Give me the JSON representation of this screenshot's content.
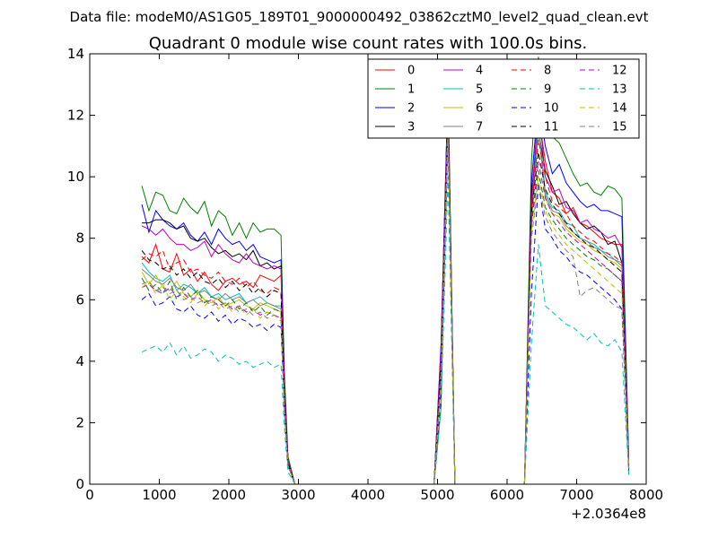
{
  "figure": {
    "suptitle": "Data file: modeM0/AS1G05_189T01_9000000492_03862cztM0_level2_quad_clean.evt"
  },
  "chart_data": {
    "type": "line",
    "title": "Quadrant 0 module wise count rates with 100.0s bins.",
    "xlabel": "",
    "ylabel": "",
    "x_offset_label": "+2.0364e8",
    "xlim": [
      0,
      8000
    ],
    "ylim": [
      0,
      14
    ],
    "xticks": [
      0,
      1000,
      2000,
      3000,
      4000,
      5000,
      6000,
      7000,
      8000
    ],
    "xtick_labels": [
      "0",
      "1000",
      "2000",
      "3000",
      "4000",
      "5000",
      "6000",
      "7000",
      "8000"
    ],
    "yticks": [
      0,
      2,
      4,
      6,
      8,
      10,
      12,
      14
    ],
    "ytick_labels": [
      "0",
      "2",
      "4",
      "6",
      "8",
      "10",
      "12",
      "14"
    ],
    "grid": false,
    "legend_position": "top-right",
    "legend_columns": 4,
    "x": [
      750,
      850,
      950,
      1050,
      1150,
      1250,
      1350,
      1450,
      1550,
      1650,
      1750,
      1850,
      1950,
      2050,
      2150,
      2250,
      2350,
      2450,
      2550,
      2650,
      2750,
      2800,
      2850,
      2950,
      3050,
      4950,
      5050,
      5150,
      5250,
      5350,
      6250,
      6350,
      6450,
      6550,
      6650,
      6750,
      6850,
      6950,
      7050,
      7150,
      7250,
      7350,
      7450,
      7550,
      7650,
      7750
    ],
    "series": [
      {
        "name": "0",
        "color": "#ff0000",
        "dash": "solid",
        "values": [
          7.4,
          7.2,
          7.8,
          7.0,
          6.9,
          7.5,
          6.8,
          7.0,
          6.6,
          6.9,
          6.5,
          6.3,
          6.6,
          6.7,
          6.5,
          6.6,
          6.4,
          6.8,
          6.7,
          6.6,
          6.8,
          3.0,
          0.7,
          0,
          0,
          0,
          4.5,
          12.7,
          0,
          0,
          0,
          9.0,
          12.0,
          10.5,
          9.5,
          9.3,
          8.8,
          9.0,
          8.5,
          8.4,
          8.2,
          8.0,
          7.9,
          7.8,
          7.8,
          0.6
        ]
      },
      {
        "name": "1",
        "color": "#008000",
        "dash": "solid",
        "values": [
          9.7,
          8.9,
          9.5,
          9.4,
          8.9,
          8.8,
          9.3,
          9.0,
          8.8,
          9.2,
          8.4,
          8.9,
          8.7,
          8.1,
          8.5,
          8.0,
          8.5,
          8.2,
          8.3,
          8.3,
          8.1,
          3.5,
          0.9,
          0,
          0,
          0,
          2.5,
          13.3,
          0,
          0,
          0,
          10.5,
          13.9,
          11.8,
          11.3,
          11.1,
          10.6,
          10.1,
          9.7,
          9.8,
          9.5,
          9.4,
          9.7,
          9.6,
          9.3,
          0.8
        ]
      },
      {
        "name": "2",
        "color": "#0000ff",
        "dash": "solid",
        "values": [
          9.1,
          8.2,
          8.9,
          8.6,
          8.4,
          8.3,
          8.5,
          8.1,
          7.9,
          8.2,
          7.8,
          8.3,
          8.0,
          7.8,
          7.9,
          7.6,
          7.8,
          7.4,
          7.3,
          7.2,
          7.3,
          3.3,
          0.8,
          0,
          0,
          0,
          4.5,
          12.8,
          0,
          0,
          0,
          9.8,
          12.5,
          11.0,
          10.1,
          10.4,
          9.8,
          9.5,
          9.2,
          9.0,
          9.1,
          8.9,
          8.9,
          8.8,
          8.7,
          0.7
        ]
      },
      {
        "name": "3",
        "color": "#000000",
        "dash": "solid",
        "values": [
          8.5,
          8.5,
          8.6,
          8.6,
          8.5,
          8.3,
          8.4,
          8.0,
          7.9,
          8.0,
          7.7,
          7.5,
          7.6,
          7.4,
          7.5,
          7.3,
          7.6,
          7.1,
          7.2,
          7.0,
          7.1,
          3.2,
          0.8,
          0,
          0,
          0,
          4.0,
          12.6,
          0,
          0,
          0,
          9.5,
          11.5,
          10.2,
          9.7,
          9.1,
          9.2,
          8.8,
          8.5,
          8.3,
          8.4,
          8.2,
          7.8,
          7.9,
          7.2,
          0.6
        ]
      },
      {
        "name": "4",
        "color": "#bf00bf",
        "dash": "solid",
        "values": [
          8.4,
          8.3,
          8.1,
          8.3,
          8.0,
          7.8,
          7.8,
          7.6,
          7.7,
          7.9,
          7.4,
          7.8,
          7.5,
          7.3,
          7.2,
          7.5,
          7.2,
          7.1,
          7.0,
          7.1,
          7.0,
          3.1,
          0.8,
          0,
          0,
          0,
          4.3,
          12.5,
          0,
          0,
          0,
          9.2,
          12.3,
          10.0,
          9.5,
          9.6,
          9.0,
          8.9,
          8.5,
          8.6,
          8.3,
          8.2,
          8.0,
          8.1,
          7.7,
          0.6
        ]
      },
      {
        "name": "5",
        "color": "#00bfbf",
        "dash": "solid",
        "values": [
          7.2,
          6.9,
          6.7,
          6.6,
          6.8,
          6.3,
          6.5,
          6.4,
          6.2,
          6.4,
          6.1,
          6.2,
          6.0,
          6.1,
          6.2,
          5.9,
          6.0,
          6.1,
          5.9,
          5.8,
          5.8,
          2.6,
          0.7,
          0,
          0,
          0,
          3.8,
          12.0,
          0,
          0,
          0,
          8.7,
          11.8,
          9.5,
          9.0,
          8.9,
          8.5,
          8.4,
          8.0,
          7.9,
          7.8,
          7.6,
          7.5,
          7.3,
          7.2,
          0.5
        ]
      },
      {
        "name": "6",
        "color": "#bfbf00",
        "dash": "solid",
        "values": [
          6.9,
          6.5,
          6.8,
          6.4,
          6.3,
          6.6,
          6.2,
          6.1,
          6.3,
          6.0,
          5.9,
          6.1,
          5.8,
          5.9,
          6.0,
          5.8,
          5.7,
          5.9,
          5.8,
          5.7,
          5.6,
          2.5,
          0.6,
          0,
          0,
          0,
          3.5,
          11.8,
          0,
          0,
          0,
          8.5,
          11.5,
          9.3,
          8.8,
          8.7,
          8.3,
          8.1,
          7.9,
          7.8,
          7.6,
          7.5,
          7.3,
          7.2,
          7.0,
          0.5
        ]
      },
      {
        "name": "7",
        "color": "#808080",
        "dash": "solid",
        "values": [
          7.0,
          6.8,
          6.6,
          6.5,
          6.7,
          6.4,
          6.3,
          6.5,
          6.2,
          6.3,
          6.1,
          6.0,
          6.2,
          6.0,
          6.1,
          5.9,
          6.0,
          5.8,
          5.9,
          5.8,
          5.7,
          2.6,
          0.7,
          0,
          0,
          0,
          3.6,
          12.2,
          0,
          0,
          0,
          8.6,
          11.6,
          9.4,
          8.9,
          8.8,
          8.4,
          8.2,
          8.0,
          7.9,
          7.7,
          7.6,
          7.4,
          7.3,
          7.1,
          0.5
        ]
      },
      {
        "name": "8",
        "color": "#ff0000",
        "dash": "dashed",
        "values": [
          7.3,
          7.5,
          7.4,
          7.6,
          7.0,
          7.2,
          7.3,
          6.9,
          7.0,
          6.8,
          6.7,
          6.9,
          6.6,
          6.5,
          6.7,
          6.4,
          6.6,
          6.3,
          6.2,
          6.4,
          6.3,
          2.8,
          0.7,
          0,
          0,
          0,
          4.0,
          12.0,
          0,
          0,
          0,
          9.0,
          11.2,
          10.0,
          9.2,
          9.0,
          8.8,
          8.4,
          8.2,
          8.0,
          7.9,
          7.7,
          7.5,
          7.4,
          7.2,
          0.6
        ]
      },
      {
        "name": "9",
        "color": "#008000",
        "dash": "dashed",
        "values": [
          6.7,
          6.3,
          6.5,
          6.2,
          6.6,
          6.0,
          6.4,
          6.1,
          6.3,
          5.9,
          6.1,
          6.0,
          5.8,
          6.0,
          5.7,
          5.9,
          5.6,
          5.8,
          5.5,
          5.7,
          5.6,
          2.5,
          0.6,
          0,
          0,
          0,
          3.4,
          11.6,
          0,
          0,
          0,
          8.4,
          10.2,
          9.0,
          8.6,
          8.3,
          8.0,
          7.8,
          7.6,
          7.4,
          7.3,
          7.1,
          7.0,
          6.8,
          6.6,
          0.5
        ]
      },
      {
        "name": "10",
        "color": "#0000ff",
        "dash": "dashed",
        "values": [
          6.0,
          6.2,
          5.8,
          5.9,
          6.1,
          5.7,
          5.6,
          5.8,
          5.5,
          5.4,
          5.6,
          5.3,
          5.5,
          5.2,
          5.4,
          5.3,
          5.1,
          5.2,
          5.0,
          5.2,
          5.1,
          2.3,
          0.6,
          0,
          0,
          0,
          3.0,
          11.2,
          0,
          0,
          0,
          6.2,
          9.8,
          8.3,
          8.0,
          7.6,
          7.4,
          7.1,
          6.9,
          6.8,
          6.6,
          6.4,
          6.2,
          6.0,
          5.7,
          0.4
        ]
      },
      {
        "name": "11",
        "color": "#000000",
        "dash": "dashed",
        "values": [
          7.6,
          7.3,
          7.2,
          7.0,
          7.1,
          6.8,
          7.0,
          6.7,
          6.9,
          6.6,
          6.5,
          6.7,
          6.4,
          6.6,
          6.3,
          6.5,
          6.2,
          6.4,
          6.1,
          6.3,
          6.2,
          2.8,
          0.7,
          0,
          0,
          0,
          3.9,
          12.1,
          0,
          0,
          0,
          8.8,
          10.8,
          9.6,
          9.1,
          8.8,
          8.5,
          8.2,
          8.0,
          7.8,
          7.7,
          7.5,
          7.3,
          7.1,
          6.9,
          0.5
        ]
      },
      {
        "name": "12",
        "color": "#bf00bf",
        "dash": "dashed",
        "values": [
          6.4,
          6.5,
          6.3,
          6.2,
          6.4,
          6.1,
          6.2,
          6.0,
          6.1,
          5.9,
          6.0,
          5.8,
          5.9,
          5.7,
          5.8,
          5.6,
          5.7,
          5.5,
          5.6,
          5.5,
          5.4,
          2.4,
          0.6,
          0,
          0,
          0,
          3.6,
          11.7,
          0,
          0,
          0,
          8.5,
          10.5,
          9.3,
          8.8,
          8.5,
          8.2,
          8.0,
          7.8,
          7.6,
          7.4,
          7.2,
          7.0,
          6.8,
          6.6,
          0.5
        ]
      },
      {
        "name": "13",
        "color": "#00bfbf",
        "dash": "dashed",
        "values": [
          4.3,
          4.4,
          4.5,
          4.3,
          4.6,
          4.2,
          4.5,
          4.1,
          4.2,
          4.4,
          4.3,
          4.0,
          4.2,
          4.1,
          3.9,
          4.0,
          3.8,
          3.9,
          4.0,
          3.8,
          3.9,
          1.8,
          0.4,
          0,
          0,
          0,
          2.5,
          10.0,
          0,
          0,
          0,
          4.6,
          7.8,
          5.8,
          5.6,
          5.4,
          5.2,
          5.1,
          4.9,
          4.7,
          4.9,
          4.6,
          4.5,
          4.7,
          4.3,
          0.3
        ]
      },
      {
        "name": "14",
        "color": "#bfbf00",
        "dash": "dashed",
        "values": [
          6.4,
          6.6,
          6.2,
          6.5,
          6.0,
          6.3,
          6.1,
          5.9,
          6.2,
          5.8,
          6.0,
          5.7,
          5.9,
          5.6,
          5.8,
          5.5,
          5.7,
          5.4,
          5.6,
          5.5,
          5.3,
          2.4,
          0.6,
          0,
          0,
          0,
          3.3,
          11.5,
          0,
          0,
          0,
          8.2,
          10.0,
          8.9,
          8.4,
          8.1,
          7.8,
          7.6,
          7.4,
          7.2,
          7.0,
          6.8,
          6.6,
          6.4,
          6.2,
          0.5
        ]
      },
      {
        "name": "15",
        "color": "#808080",
        "dash": "dashed",
        "values": [
          6.5,
          6.6,
          6.3,
          6.4,
          6.2,
          6.3,
          6.0,
          6.1,
          5.9,
          6.0,
          5.8,
          5.9,
          5.7,
          5.8,
          5.6,
          5.7,
          5.5,
          5.6,
          5.4,
          5.5,
          5.4,
          2.4,
          0.6,
          0,
          0,
          0,
          3.3,
          11.4,
          0,
          0,
          0,
          8.0,
          9.8,
          8.7,
          8.2,
          7.9,
          7.6,
          7.4,
          6.1,
          6.3,
          6.4,
          6.2,
          6.0,
          5.8,
          5.7,
          0.5
        ]
      }
    ]
  }
}
